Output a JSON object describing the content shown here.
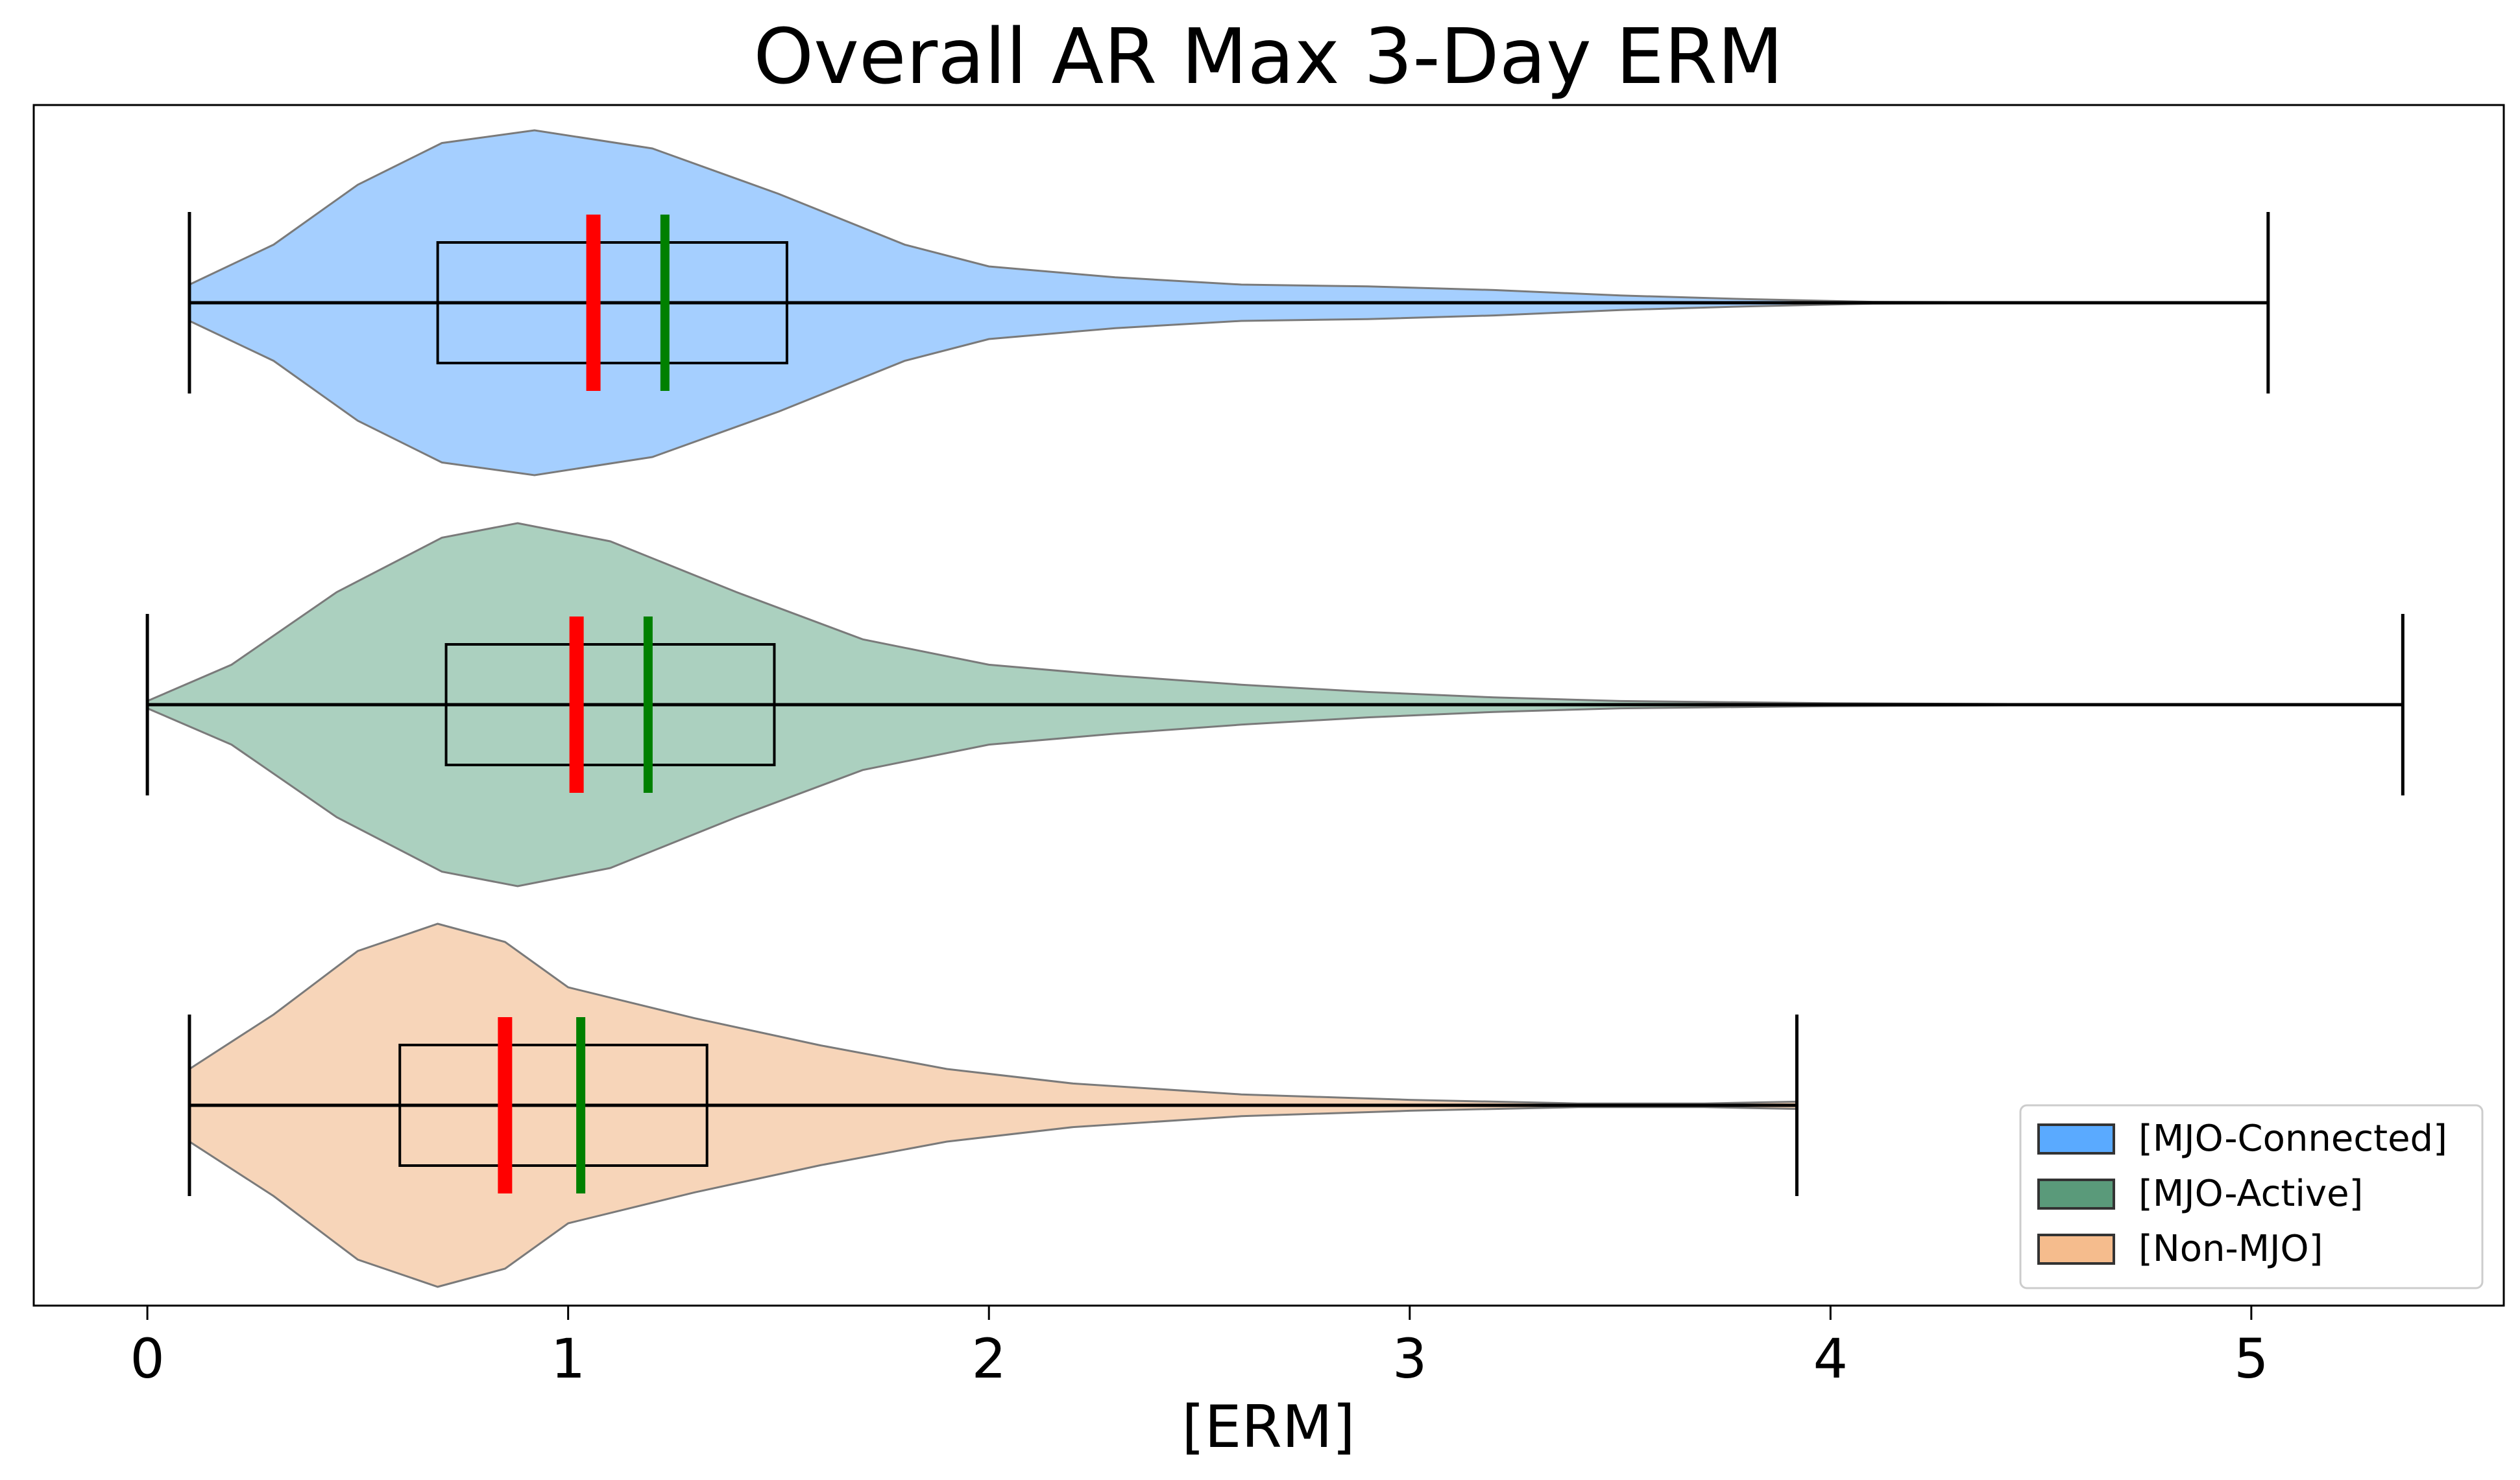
{
  "chart_data": {
    "type": "violin",
    "orientation": "horizontal",
    "title": "Overall AR Max 3-Day ERM",
    "xlabel": "[ERM]",
    "ylabel": "",
    "xlim": [
      -0.27,
      5.6
    ],
    "xticks": [
      0,
      1,
      2,
      3,
      4,
      5
    ],
    "xtick_labels": [
      "0",
      "1",
      "2",
      "3",
      "4",
      "5"
    ],
    "grid": false,
    "legend_position": "bottom-right",
    "median_color": "#ff0000",
    "mean_color": "#008000",
    "series": [
      {
        "name": "[MJO-Connected]",
        "fill": "#a5cfff",
        "legend_color": "#5aaaff",
        "min": 0.1,
        "max": 5.04,
        "q1": 0.69,
        "q3": 1.52,
        "median": 1.06,
        "mean": 1.23,
        "density": [
          [
            0.1,
            0.1
          ],
          [
            0.3,
            0.32
          ],
          [
            0.5,
            0.65
          ],
          [
            0.7,
            0.88
          ],
          [
            0.92,
            0.95
          ],
          [
            1.2,
            0.85
          ],
          [
            1.5,
            0.6
          ],
          [
            1.8,
            0.32
          ],
          [
            2.0,
            0.2
          ],
          [
            2.3,
            0.14
          ],
          [
            2.6,
            0.1
          ],
          [
            2.9,
            0.09
          ],
          [
            3.2,
            0.07
          ],
          [
            3.5,
            0.04
          ],
          [
            3.8,
            0.02
          ],
          [
            4.1,
            0.005
          ],
          [
            4.5,
            0.002
          ],
          [
            5.04,
            0.0
          ]
        ]
      },
      {
        "name": "[MJO-Active]",
        "fill": "#abd0bf",
        "legend_color": "#5a9a7a",
        "min": 0.0,
        "max": 5.36,
        "q1": 0.71,
        "q3": 1.49,
        "median": 1.02,
        "mean": 1.19,
        "density": [
          [
            0.0,
            0.02
          ],
          [
            0.2,
            0.22
          ],
          [
            0.45,
            0.62
          ],
          [
            0.7,
            0.92
          ],
          [
            0.88,
            1.0
          ],
          [
            1.1,
            0.9
          ],
          [
            1.4,
            0.62
          ],
          [
            1.7,
            0.36
          ],
          [
            2.0,
            0.22
          ],
          [
            2.3,
            0.16
          ],
          [
            2.6,
            0.11
          ],
          [
            2.9,
            0.07
          ],
          [
            3.2,
            0.04
          ],
          [
            3.5,
            0.02
          ],
          [
            4.0,
            0.008
          ],
          [
            4.5,
            0.003
          ],
          [
            5.36,
            0.0
          ]
        ]
      },
      {
        "name": "[Non-MJO]",
        "fill": "#f7d5b9",
        "legend_color": "#f5bc8d",
        "min": 0.1,
        "max": 3.92,
        "q1": 0.6,
        "q3": 1.33,
        "median": 0.85,
        "mean": 1.03,
        "density": [
          [
            0.1,
            0.2
          ],
          [
            0.3,
            0.5
          ],
          [
            0.5,
            0.85
          ],
          [
            0.69,
            1.0
          ],
          [
            0.85,
            0.9
          ],
          [
            1.0,
            0.65
          ],
          [
            1.3,
            0.48
          ],
          [
            1.6,
            0.33
          ],
          [
            1.9,
            0.2
          ],
          [
            2.2,
            0.12
          ],
          [
            2.6,
            0.06
          ],
          [
            3.0,
            0.03
          ],
          [
            3.4,
            0.01
          ],
          [
            3.7,
            0.01
          ],
          [
            3.92,
            0.02
          ]
        ]
      }
    ]
  }
}
